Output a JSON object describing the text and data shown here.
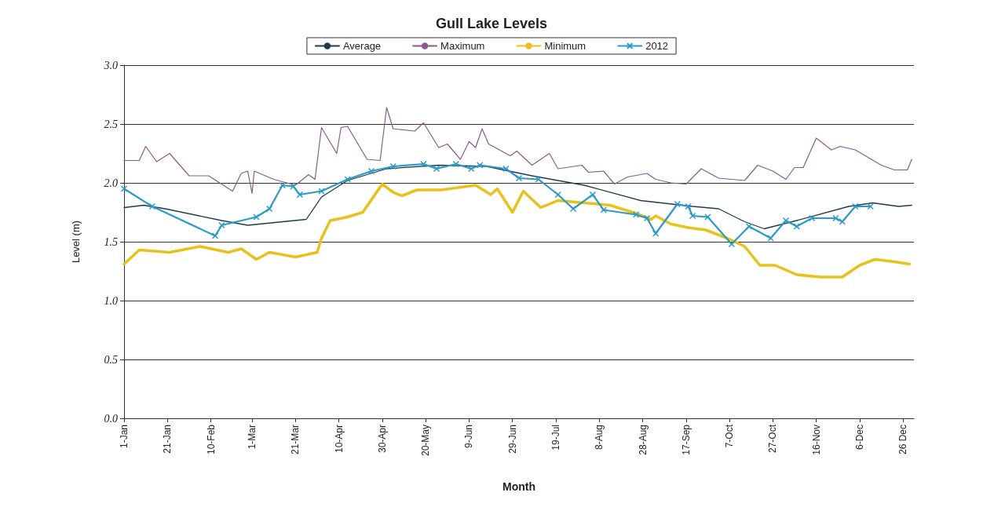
{
  "chart_data": {
    "type": "line",
    "title": "Gull Lake Levels",
    "xlabel": "Month",
    "ylabel": "Level (m)",
    "legend": "top",
    "grid": "y",
    "line_style": "solid",
    "xlim": [
      "--01-01",
      "--12-31"
    ],
    "ylim": [
      0,
      3
    ],
    "xticks": [
      {
        "value": "--01-01",
        "label": "1-Jan"
      },
      {
        "value": "--01-21",
        "label": "21-Jan"
      },
      {
        "value": "--02-10",
        "label": "10-Feb"
      },
      {
        "value": "--03-01",
        "label": "1-Mar"
      },
      {
        "value": "--03-21",
        "label": "21-Mar"
      },
      {
        "value": "--04-10",
        "label": "10-Apr"
      },
      {
        "value": "--04-30",
        "label": "30-Apr"
      },
      {
        "value": "--05-20",
        "label": "20-May"
      },
      {
        "value": "--06-09",
        "label": "9-Jun"
      },
      {
        "value": "--06-29",
        "label": "29-Jun"
      },
      {
        "value": "--07-19",
        "label": "19-Jul"
      },
      {
        "value": "--08-08",
        "label": "8-Aug"
      },
      {
        "value": "--08-28",
        "label": "28-Aug"
      },
      {
        "value": "--09-17",
        "label": "17-Sep"
      },
      {
        "value": "--10-07",
        "label": "7-Oct"
      },
      {
        "value": "--10-27",
        "label": "27-Oct"
      },
      {
        "value": "--11-16",
        "label": "16-Nov"
      },
      {
        "value": "--12-06",
        "label": "6-Dec"
      },
      {
        "value": "--12-26",
        "label": "26 Dec"
      }
    ],
    "yticks": [
      {
        "value": 0,
        "label": "0.0"
      },
      {
        "value": 0.5,
        "label": "0.5"
      },
      {
        "value": 1,
        "label": "1.0"
      },
      {
        "value": 1.5,
        "label": "1.5"
      },
      {
        "value": 2,
        "label": "2.0"
      },
      {
        "value": 2.5,
        "label": "2.5"
      },
      {
        "value": 3,
        "label": "3.0"
      }
    ],
    "series": [
      {
        "name": "Average",
        "color": "#1f3a4d",
        "marker": "none",
        "x": [
          "--01-01",
          "--01-10",
          "--01-20",
          "--02-15",
          "--02-27",
          "--03-26",
          "--04-02",
          "--04-14",
          "--05-02",
          "--05-26",
          "--06-17",
          "--07-08",
          "--08-01",
          "--08-27",
          "--09-20",
          "--10-02",
          "--10-14",
          "--10-23",
          "--11-07",
          "--12-01",
          "--12-12",
          "--12-24",
          "--12-30"
        ],
        "values": [
          1.79,
          1.81,
          1.78,
          1.68,
          1.64,
          1.69,
          1.88,
          2.02,
          2.12,
          2.15,
          2.14,
          2.06,
          1.98,
          1.85,
          1.8,
          1.78,
          1.67,
          1.61,
          1.68,
          1.8,
          1.83,
          1.8,
          1.81
        ]
      },
      {
        "name": "Maximum",
        "color": "#8a5a8a",
        "marker": "none",
        "x": [
          "--01-01",
          "--01-08",
          "--01-11",
          "--01-16",
          "--01-22",
          "--01-31",
          "--02-09",
          "--02-20",
          "--02-24",
          "--02-27",
          "--03-01",
          "--03-02",
          "--03-11",
          "--03-21",
          "--03-27",
          "--03-30",
          "--04-02",
          "--04-09",
          "--04-11",
          "--04-14",
          "--04-23",
          "--04-29",
          "--05-02",
          "--05-05",
          "--05-15",
          "--05-19",
          "--05-26",
          "--05-30",
          "--06-05",
          "--06-09",
          "--06-12",
          "--06-15",
          "--06-18",
          "--06-28",
          "--07-01",
          "--07-08",
          "--07-16",
          "--07-20",
          "--07-31",
          "--08-03",
          "--08-10",
          "--08-15",
          "--08-21",
          "--08-30",
          "--09-03",
          "--09-10",
          "--09-17",
          "--09-24",
          "--10-02",
          "--10-14",
          "--10-20",
          "--10-27",
          "--11-02",
          "--11-06",
          "--11-10",
          "--11-16",
          "--11-23",
          "--11-27",
          "--12-04",
          "--12-16",
          "--12-22",
          "--12-28",
          "--12-30"
        ],
        "values": [
          2.19,
          2.19,
          2.31,
          2.18,
          2.25,
          2.06,
          2.06,
          1.93,
          2.08,
          2.1,
          1.91,
          2.1,
          2.03,
          1.98,
          2.07,
          2.03,
          2.47,
          2.25,
          2.47,
          2.48,
          2.2,
          2.19,
          2.64,
          2.46,
          2.44,
          2.51,
          2.3,
          2.33,
          2.2,
          2.35,
          2.3,
          2.46,
          2.33,
          2.23,
          2.27,
          2.15,
          2.25,
          2.12,
          2.15,
          2.09,
          2.1,
          1.99,
          2.05,
          2.08,
          2.03,
          2.0,
          1.99,
          2.12,
          2.04,
          2.02,
          2.15,
          2.1,
          2.03,
          2.13,
          2.13,
          2.38,
          2.28,
          2.31,
          2.28,
          2.15,
          2.11,
          2.11,
          2.2
        ]
      },
      {
        "name": "Minimum",
        "color": "#e8c21a",
        "marker": "none",
        "x": [
          "--01-01",
          "--01-08",
          "--01-22",
          "--02-05",
          "--02-18",
          "--02-24",
          "--03-03",
          "--03-09",
          "--03-21",
          "--03-31",
          "--04-02",
          "--04-06",
          "--04-14",
          "--04-21",
          "--04-30",
          "--05-05",
          "--05-09",
          "--05-16",
          "--05-27",
          "--06-12",
          "--06-19",
          "--06-22",
          "--06-29",
          "--07-04",
          "--07-12",
          "--07-20",
          "--08-01",
          "--08-13",
          "--08-25",
          "--09-01",
          "--09-03",
          "--09-10",
          "--09-18",
          "--09-26",
          "--10-06",
          "--10-14",
          "--10-21",
          "--10-28",
          "--11-07",
          "--11-18",
          "--11-28",
          "--12-06",
          "--12-13",
          "--12-22",
          "--12-29"
        ],
        "values": [
          1.31,
          1.43,
          1.41,
          1.46,
          1.41,
          1.44,
          1.35,
          1.41,
          1.37,
          1.41,
          1.53,
          1.68,
          1.71,
          1.75,
          1.99,
          1.92,
          1.89,
          1.94,
          1.94,
          1.98,
          1.9,
          1.95,
          1.75,
          1.93,
          1.79,
          1.85,
          1.83,
          1.81,
          1.74,
          1.69,
          1.72,
          1.65,
          1.62,
          1.6,
          1.53,
          1.46,
          1.3,
          1.3,
          1.22,
          1.2,
          1.2,
          1.3,
          1.35,
          1.33,
          1.31
        ]
      },
      {
        "name": "2012",
        "color": "#2a9ac9",
        "marker": "cross",
        "x": [
          "--01-01",
          "--01-14",
          "--02-12",
          "--02-15",
          "--03-03",
          "--03-09",
          "--03-15",
          "--03-20",
          "--03-23",
          "--04-02",
          "--04-14",
          "--04-25",
          "--05-05",
          "--05-19",
          "--05-25",
          "--06-03",
          "--06-10",
          "--06-14",
          "--06-26",
          "--07-02",
          "--07-11",
          "--07-20",
          "--07-27",
          "--08-05",
          "--08-10",
          "--08-25",
          "--08-30",
          "--09-03",
          "--09-13",
          "--09-18",
          "--09-20",
          "--09-27",
          "--10-08",
          "--10-16",
          "--10-26",
          "--11-02",
          "--11-07",
          "--11-14",
          "--11-25",
          "--11-28",
          "--12-04",
          "--12-11"
        ],
        "values": [
          1.95,
          1.8,
          1.55,
          1.64,
          1.71,
          1.78,
          1.98,
          1.97,
          1.9,
          1.93,
          2.03,
          2.1,
          2.14,
          2.16,
          2.12,
          2.16,
          2.12,
          2.15,
          2.12,
          2.04,
          2.03,
          1.9,
          1.78,
          1.9,
          1.77,
          1.73,
          1.7,
          1.57,
          1.82,
          1.8,
          1.72,
          1.71,
          1.48,
          1.63,
          1.53,
          1.68,
          1.63,
          1.7,
          1.7,
          1.67,
          1.8,
          1.8
        ]
      }
    ]
  }
}
